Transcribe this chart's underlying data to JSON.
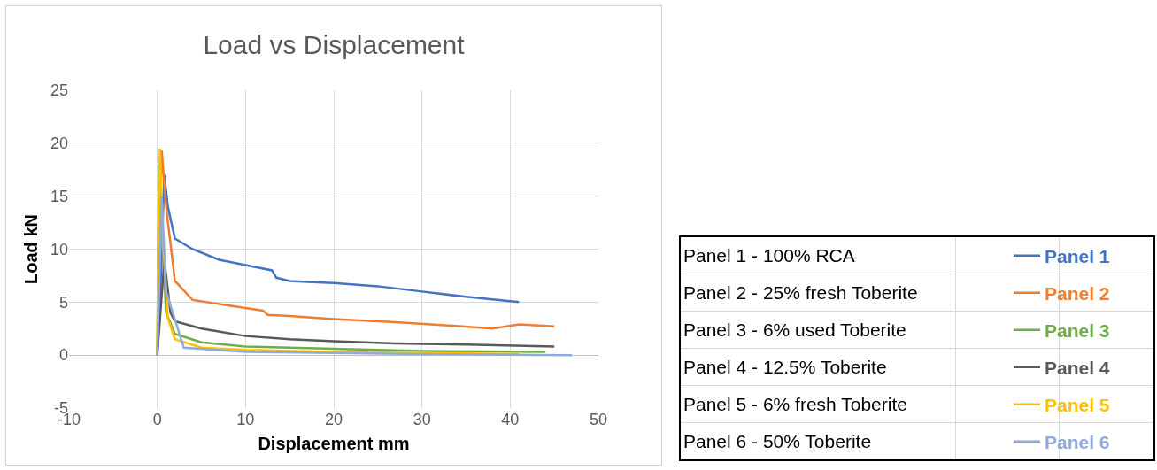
{
  "chart_data": [
    {
      "type": "line",
      "title": "Load vs Displacement",
      "xlabel": "Displacement mm",
      "ylabel": "Load kN",
      "xlim": [
        -10,
        50
      ],
      "xticks": [
        -10,
        0,
        10,
        20,
        30,
        40,
        50
      ],
      "ylim": [
        -5,
        25
      ],
      "yticks": [
        -5,
        0,
        5,
        10,
        15,
        20,
        25
      ],
      "grid": true,
      "legend": "right",
      "marker": "none",
      "line_style": "solid",
      "series": [
        {
          "name": "Panel 1",
          "color": "#4472c4",
          "x": [
            0,
            0.3,
            0.8,
            1.2,
            2,
            4,
            7,
            10,
            13,
            13.5,
            15,
            17,
            20,
            25,
            30,
            35,
            41
          ],
          "values": [
            0,
            5,
            17,
            14,
            11,
            10,
            9,
            8.5,
            8,
            7.3,
            7,
            6.9,
            6.8,
            6.5,
            6,
            5.5,
            5
          ]
        },
        {
          "name": "Panel 2",
          "color": "#ed7d31",
          "x": [
            0,
            0.2,
            0.5,
            1,
            2,
            4,
            8,
            12,
            12.5,
            15,
            20,
            27,
            33,
            38,
            41,
            45
          ],
          "values": [
            0,
            8,
            19.3,
            14,
            7,
            5.2,
            4.7,
            4.2,
            3.8,
            3.7,
            3.4,
            3.1,
            2.8,
            2.5,
            2.9,
            2.7
          ]
        },
        {
          "name": "Panel 3",
          "color": "#70ad47",
          "x": [
            0,
            0.2,
            0.6,
            1,
            2,
            5,
            10,
            20,
            30,
            44
          ],
          "values": [
            0,
            18,
            10,
            4,
            2,
            1.2,
            0.8,
            0.6,
            0.4,
            0.3
          ]
        },
        {
          "name": "Panel 4",
          "color": "#595959",
          "x": [
            0,
            0.8,
            1.5,
            2,
            5,
            10,
            15,
            20,
            27,
            35,
            45
          ],
          "values": [
            0,
            9,
            4,
            3.2,
            2.5,
            1.8,
            1.5,
            1.3,
            1.1,
            1,
            0.8
          ]
        },
        {
          "name": "Panel 5",
          "color": "#ffc000",
          "x": [
            0,
            0.1,
            0.3,
            0.7,
            1.2,
            2,
            5,
            10,
            20,
            30,
            41
          ],
          "values": [
            0,
            10,
            19.5,
            10,
            3.5,
            1.5,
            0.7,
            0.5,
            0.3,
            0.2,
            0.1
          ]
        },
        {
          "name": "Panel 6",
          "color": "#8faadc",
          "x": [
            0,
            0.2,
            0.5,
            1,
            3,
            10,
            30,
            47
          ],
          "values": [
            0,
            6,
            15,
            6,
            0.7,
            0.3,
            0.1,
            0
          ]
        }
      ]
    },
    {
      "type": "other",
      "annotations": [
        "Panel 1 - 100% RCA",
        "Panel 2 - 25% fresh Toberite",
        "Panel 3 - 6% used Toberite",
        "Panel 4 - 12.5% Toberite",
        "Panel 5 - 6% fresh Toberite",
        "Panel 6 - 50% Toberite"
      ]
    }
  ]
}
